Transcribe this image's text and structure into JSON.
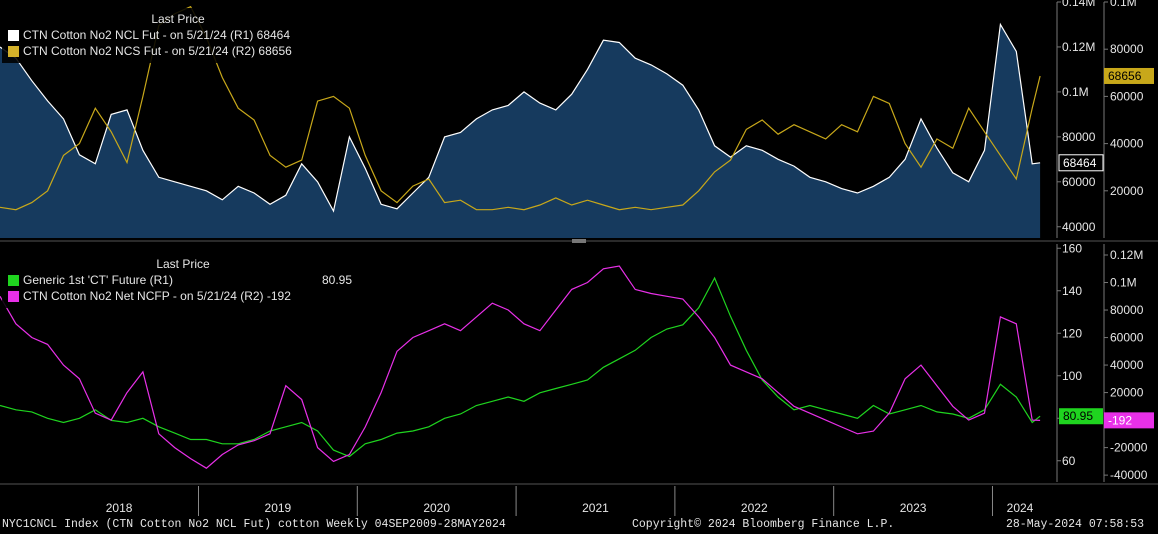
{
  "colors": {
    "background": "#000000",
    "ncl": "#ffffff",
    "ncl_fill": "#163a5e",
    "ncs": "#c8a81a",
    "generic": "#1fd41f",
    "ncfp": "#e830e8",
    "axis_text": "#e6e6e6",
    "grid": "#2a2a2a"
  },
  "top_panel": {
    "legend_header": "Last Price",
    "legend": [
      {
        "label": "CTN Cotton No2 NCL Fut -  on 5/21/24  (R1) 68464",
        "color": "#ffffff"
      },
      {
        "label": "CTN Cotton No2 NCS Fut -  on 5/21/24  (R2) 68656",
        "color": "#d4b12a"
      }
    ],
    "tag_r1": "68464",
    "tag_r2": "68656"
  },
  "bottom_panel": {
    "legend_header": "Last Price",
    "legend": [
      {
        "label": "Generic 1st 'CT' Future  (R1)",
        "value": "80.95",
        "color": "#1fd41f"
      },
      {
        "label": "CTN Cotton No2 Net NCFP -  on 5/21/24  (R2) -192",
        "value": "",
        "color": "#e830e8"
      }
    ],
    "tag_r1": "80.95",
    "tag_r2": "-192"
  },
  "footer": {
    "left": "NYC1CNCL Index (CTN Cotton No2 NCL Fut) cotton  Weekly 04SEP2009-28MAY2024",
    "center": "Copyright© 2024 Bloomberg Finance L.P.",
    "right": "28-May-2024 07:58:53"
  },
  "chart_data": [
    {
      "type": "area",
      "panel": "top",
      "x_labels": [
        "2018",
        "2019",
        "2020",
        "2021",
        "2022",
        "2023",
        "2024"
      ],
      "x_range": [
        2017.75,
        2024.4
      ],
      "axis_r1": {
        "ticks": [
          "40000",
          "60000",
          "80000",
          "0.1M",
          "0.12M",
          "0.14M"
        ],
        "ylim": [
          35000,
          140000
        ]
      },
      "axis_r2": {
        "ticks": [
          "20000",
          "40000",
          "60000",
          "80000",
          "0.1M"
        ],
        "ylim": [
          0,
          100000
        ]
      },
      "series": [
        {
          "name": "CTN Cotton No2 NCL Fut",
          "axis": "R1",
          "style": "area",
          "x": [
            2017.75,
            2017.85,
            2017.95,
            2018.05,
            2018.15,
            2018.25,
            2018.35,
            2018.45,
            2018.55,
            2018.65,
            2018.75,
            2018.85,
            2018.95,
            2019.05,
            2019.15,
            2019.25,
            2019.35,
            2019.45,
            2019.55,
            2019.65,
            2019.75,
            2019.85,
            2019.95,
            2020.05,
            2020.15,
            2020.25,
            2020.35,
            2020.45,
            2020.55,
            2020.65,
            2020.75,
            2020.85,
            2020.95,
            2021.05,
            2021.15,
            2021.25,
            2021.35,
            2021.45,
            2021.55,
            2021.65,
            2021.75,
            2021.85,
            2021.95,
            2022.05,
            2022.15,
            2022.25,
            2022.35,
            2022.45,
            2022.55,
            2022.65,
            2022.75,
            2022.85,
            2022.95,
            2023.05,
            2023.15,
            2023.25,
            2023.35,
            2023.45,
            2023.55,
            2023.65,
            2023.75,
            2023.85,
            2023.95,
            2024.05,
            2024.15,
            2024.25,
            2024.3
          ],
          "y": [
            120000,
            115000,
            105000,
            96000,
            88000,
            72000,
            68000,
            90000,
            92000,
            74000,
            62000,
            60000,
            58000,
            56000,
            52000,
            58000,
            55000,
            50000,
            54000,
            68000,
            60000,
            47000,
            80000,
            66000,
            50000,
            48000,
            55000,
            62000,
            80000,
            82000,
            88000,
            92000,
            94000,
            100000,
            95000,
            92000,
            99000,
            110000,
            123000,
            122000,
            115000,
            112000,
            108000,
            103000,
            92000,
            76000,
            71000,
            76000,
            74000,
            70000,
            67000,
            62000,
            60000,
            57000,
            55000,
            58000,
            62000,
            70000,
            88000,
            75000,
            64000,
            60000,
            74000,
            130000,
            118000,
            68000,
            68464
          ]
        },
        {
          "name": "CTN Cotton No2 NCS Fut",
          "axis": "R2",
          "style": "line",
          "x": [
            2017.75,
            2017.85,
            2017.95,
            2018.05,
            2018.15,
            2018.25,
            2018.35,
            2018.45,
            2018.55,
            2018.65,
            2018.75,
            2018.85,
            2018.95,
            2019.05,
            2019.15,
            2019.25,
            2019.35,
            2019.45,
            2019.55,
            2019.65,
            2019.75,
            2019.85,
            2019.95,
            2020.05,
            2020.15,
            2020.25,
            2020.35,
            2020.45,
            2020.55,
            2020.65,
            2020.75,
            2020.85,
            2020.95,
            2021.05,
            2021.15,
            2021.25,
            2021.35,
            2021.45,
            2021.55,
            2021.65,
            2021.75,
            2021.85,
            2021.95,
            2022.05,
            2022.15,
            2022.25,
            2022.35,
            2022.45,
            2022.55,
            2022.65,
            2022.75,
            2022.85,
            2022.95,
            2023.05,
            2023.15,
            2023.25,
            2023.35,
            2023.45,
            2023.55,
            2023.65,
            2023.75,
            2023.85,
            2023.95,
            2024.05,
            2024.15,
            2024.25,
            2024.3
          ],
          "y": [
            13000,
            12000,
            15000,
            20000,
            35000,
            40000,
            55000,
            45000,
            32000,
            60000,
            90000,
            95000,
            98000,
            85000,
            68000,
            55000,
            50000,
            35000,
            30000,
            33000,
            58000,
            60000,
            55000,
            35000,
            20000,
            15000,
            22000,
            25000,
            15000,
            16000,
            12000,
            12000,
            13000,
            12000,
            14000,
            17000,
            14000,
            16000,
            14000,
            12000,
            13000,
            12000,
            13000,
            14000,
            20000,
            28000,
            33000,
            46000,
            50000,
            44000,
            48000,
            45000,
            42000,
            48000,
            45000,
            60000,
            57000,
            40000,
            30000,
            42000,
            38000,
            55000,
            45000,
            35000,
            25000,
            55000,
            68656
          ]
        }
      ]
    },
    {
      "type": "line",
      "panel": "bottom",
      "x_labels": [
        "2018",
        "2019",
        "2020",
        "2021",
        "2022",
        "2023",
        "2024"
      ],
      "x_range": [
        2017.75,
        2024.4
      ],
      "axis_r1": {
        "ticks": [
          "60",
          "80",
          "100",
          "120",
          "140",
          "160"
        ],
        "ylim": [
          50,
          162
        ]
      },
      "axis_r2": {
        "ticks": [
          "-40000",
          "-20000",
          "0",
          "20000",
          "40000",
          "60000",
          "80000",
          "0.1M",
          "0.12M"
        ],
        "ylim": [
          -45000,
          128000
        ]
      },
      "series": [
        {
          "name": "Generic 1st 'CT' Future",
          "axis": "R1",
          "x": [
            2017.75,
            2017.85,
            2017.95,
            2018.05,
            2018.15,
            2018.25,
            2018.35,
            2018.45,
            2018.55,
            2018.65,
            2018.75,
            2018.85,
            2018.95,
            2019.05,
            2019.15,
            2019.25,
            2019.35,
            2019.45,
            2019.55,
            2019.65,
            2019.75,
            2019.85,
            2019.95,
            2020.05,
            2020.15,
            2020.25,
            2020.35,
            2020.45,
            2020.55,
            2020.65,
            2020.75,
            2020.85,
            2020.95,
            2021.05,
            2021.15,
            2021.25,
            2021.35,
            2021.45,
            2021.55,
            2021.65,
            2021.75,
            2021.85,
            2021.95,
            2022.05,
            2022.15,
            2022.25,
            2022.35,
            2022.45,
            2022.55,
            2022.65,
            2022.75,
            2022.85,
            2022.95,
            2023.05,
            2023.15,
            2023.25,
            2023.35,
            2023.45,
            2023.55,
            2023.65,
            2023.75,
            2023.85,
            2023.95,
            2024.05,
            2024.15,
            2024.25,
            2024.3
          ],
          "y": [
            86,
            84,
            83,
            80,
            78,
            80,
            84,
            79,
            78,
            80,
            76,
            73,
            70,
            70,
            68,
            68,
            70,
            74,
            76,
            78,
            74,
            65,
            62,
            68,
            70,
            73,
            74,
            76,
            80,
            82,
            86,
            88,
            90,
            88,
            92,
            94,
            96,
            98,
            104,
            108,
            112,
            118,
            122,
            124,
            132,
            146,
            128,
            112,
            98,
            90,
            84,
            86,
            84,
            82,
            80,
            86,
            82,
            84,
            86,
            83,
            82,
            80,
            84,
            96,
            90,
            78,
            80.95
          ]
        },
        {
          "name": "CTN Cotton No2 Net NCFP",
          "axis": "R2",
          "x": [
            2017.75,
            2017.85,
            2017.95,
            2018.05,
            2018.15,
            2018.25,
            2018.35,
            2018.45,
            2018.55,
            2018.65,
            2018.75,
            2018.85,
            2018.95,
            2019.05,
            2019.15,
            2019.25,
            2019.35,
            2019.45,
            2019.55,
            2019.65,
            2019.75,
            2019.85,
            2019.95,
            2020.05,
            2020.15,
            2020.25,
            2020.35,
            2020.45,
            2020.55,
            2020.65,
            2020.75,
            2020.85,
            2020.95,
            2021.05,
            2021.15,
            2021.25,
            2021.35,
            2021.45,
            2021.55,
            2021.65,
            2021.75,
            2021.85,
            2021.95,
            2022.05,
            2022.15,
            2022.25,
            2022.35,
            2022.45,
            2022.55,
            2022.65,
            2022.75,
            2022.85,
            2022.95,
            2023.05,
            2023.15,
            2023.25,
            2023.35,
            2023.45,
            2023.55,
            2023.65,
            2023.75,
            2023.85,
            2023.95,
            2024.05,
            2024.15,
            2024.25,
            2024.3
          ],
          "y": [
            90000,
            70000,
            60000,
            55000,
            40000,
            30000,
            5000,
            0,
            20000,
            35000,
            -10000,
            -20000,
            -28000,
            -35000,
            -25000,
            -18000,
            -15000,
            -10000,
            25000,
            15000,
            -20000,
            -30000,
            -25000,
            -5000,
            20000,
            50000,
            60000,
            65000,
            70000,
            65000,
            75000,
            85000,
            80000,
            70000,
            65000,
            80000,
            95000,
            100000,
            110000,
            112000,
            95000,
            92000,
            90000,
            88000,
            75000,
            60000,
            40000,
            35000,
            30000,
            20000,
            10000,
            5000,
            0,
            -5000,
            -10000,
            -8000,
            5000,
            30000,
            40000,
            25000,
            10000,
            0,
            5000,
            75000,
            70000,
            0,
            -192
          ]
        }
      ]
    }
  ]
}
